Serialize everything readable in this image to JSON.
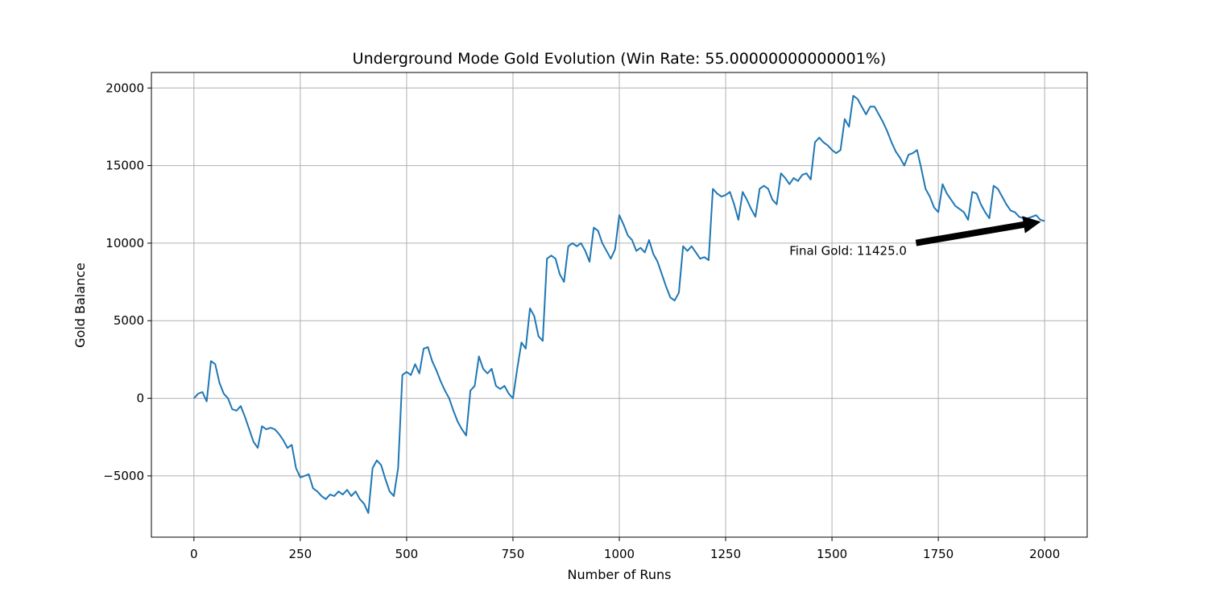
{
  "chart_data": {
    "type": "line",
    "title": "Underground Mode Gold Evolution (Win Rate: 55.00000000000001%)",
    "xlabel": "Number of Runs",
    "ylabel": "Gold Balance",
    "color": "#1f77b4",
    "grid": true,
    "xlim": [
      -100,
      2100
    ],
    "ylim": [
      -8950,
      21000
    ],
    "xticks": [
      0,
      250,
      500,
      750,
      1000,
      1250,
      1500,
      1750,
      2000
    ],
    "yticks": [
      {
        "value": -5000,
        "label": "−5000"
      },
      0,
      5000,
      10000,
      15000,
      20000
    ],
    "x": [
      0,
      10,
      20,
      30,
      40,
      50,
      60,
      70,
      80,
      90,
      100,
      110,
      120,
      130,
      140,
      150,
      160,
      170,
      180,
      190,
      200,
      210,
      220,
      230,
      240,
      250,
      260,
      270,
      280,
      290,
      300,
      310,
      320,
      330,
      340,
      350,
      360,
      370,
      380,
      390,
      400,
      410,
      420,
      430,
      440,
      450,
      460,
      470,
      480,
      490,
      500,
      510,
      520,
      530,
      540,
      550,
      560,
      570,
      580,
      590,
      600,
      610,
      620,
      630,
      640,
      650,
      660,
      670,
      680,
      690,
      700,
      710,
      720,
      730,
      740,
      750,
      760,
      770,
      780,
      790,
      800,
      810,
      820,
      830,
      840,
      850,
      860,
      870,
      880,
      890,
      900,
      910,
      920,
      930,
      940,
      950,
      960,
      970,
      980,
      990,
      1000,
      1010,
      1020,
      1030,
      1040,
      1050,
      1060,
      1070,
      1080,
      1090,
      1100,
      1110,
      1120,
      1130,
      1140,
      1150,
      1160,
      1170,
      1180,
      1190,
      1200,
      1210,
      1220,
      1230,
      1240,
      1250,
      1260,
      1270,
      1280,
      1290,
      1300,
      1310,
      1320,
      1330,
      1340,
      1350,
      1360,
      1370,
      1380,
      1390,
      1400,
      1410,
      1420,
      1430,
      1440,
      1450,
      1460,
      1470,
      1480,
      1490,
      1500,
      1510,
      1520,
      1530,
      1540,
      1550,
      1560,
      1570,
      1580,
      1590,
      1600,
      1610,
      1620,
      1630,
      1640,
      1650,
      1660,
      1670,
      1680,
      1690,
      1700,
      1710,
      1720,
      1730,
      1740,
      1750,
      1760,
      1770,
      1780,
      1790,
      1800,
      1810,
      1820,
      1830,
      1840,
      1850,
      1860,
      1870,
      1880,
      1890,
      1900,
      1910,
      1920,
      1930,
      1940,
      1950,
      1960,
      1970,
      1980,
      1990,
      2000
    ],
    "values": [
      0,
      300,
      400,
      -200,
      2400,
      2200,
      1000,
      300,
      0,
      -700,
      -800,
      -500,
      -1200,
      -2000,
      -2800,
      -3200,
      -1800,
      -2000,
      -1900,
      -2000,
      -2300,
      -2700,
      -3200,
      -3000,
      -4500,
      -5100,
      -5000,
      -4900,
      -5800,
      -6000,
      -6300,
      -6500,
      -6200,
      -6300,
      -6000,
      -6200,
      -5900,
      -6300,
      -6000,
      -6500,
      -6800,
      -7400,
      -4500,
      -4000,
      -4300,
      -5200,
      -6000,
      -6300,
      -4500,
      1500,
      1700,
      1500,
      2200,
      1600,
      3200,
      3300,
      2400,
      1800,
      1100,
      500,
      0,
      -800,
      -1500,
      -2000,
      -2400,
      500,
      800,
      2700,
      1900,
      1600,
      1900,
      800,
      600,
      800,
      300,
      0,
      1900,
      3600,
      3200,
      5800,
      5300,
      4000,
      3700,
      9000,
      9200,
      9000,
      8000,
      7500,
      9800,
      10000,
      9800,
      10000,
      9500,
      8800,
      11000,
      10800,
      10000,
      9500,
      9000,
      9600,
      11800,
      11200,
      10500,
      10200,
      9500,
      9700,
      9400,
      10200,
      9300,
      8800,
      8000,
      7200,
      6500,
      6300,
      6800,
      9800,
      9500,
      9800,
      9400,
      9000,
      9100,
      8900,
      13500,
      13200,
      13000,
      13100,
      13300,
      12500,
      11500,
      13300,
      12800,
      12200,
      11700,
      13500,
      13700,
      13500,
      12800,
      12500,
      14500,
      14200,
      13800,
      14200,
      14000,
      14400,
      14500,
      14100,
      16500,
      16800,
      16500,
      16300,
      16000,
      15800,
      16000,
      18000,
      17500,
      19500,
      19300,
      18800,
      18300,
      18800,
      18800,
      18300,
      17800,
      17200,
      16500,
      15900,
      15500,
      15000,
      15700,
      15800,
      16000,
      14800,
      13500,
      13000,
      12300,
      12000,
      13800,
      13200,
      12800,
      12400,
      12200,
      12000,
      11500,
      13300,
      13200,
      12500,
      12000,
      11600,
      13700,
      13500,
      13000,
      12500,
      12100,
      12000,
      11700,
      11600,
      11600,
      11700,
      11800,
      11500,
      11425
    ],
    "annotation": {
      "text": "Final Gold: 11425.0",
      "x": 1400,
      "y": 9500,
      "xy": [
        2000,
        11425
      ]
    }
  }
}
